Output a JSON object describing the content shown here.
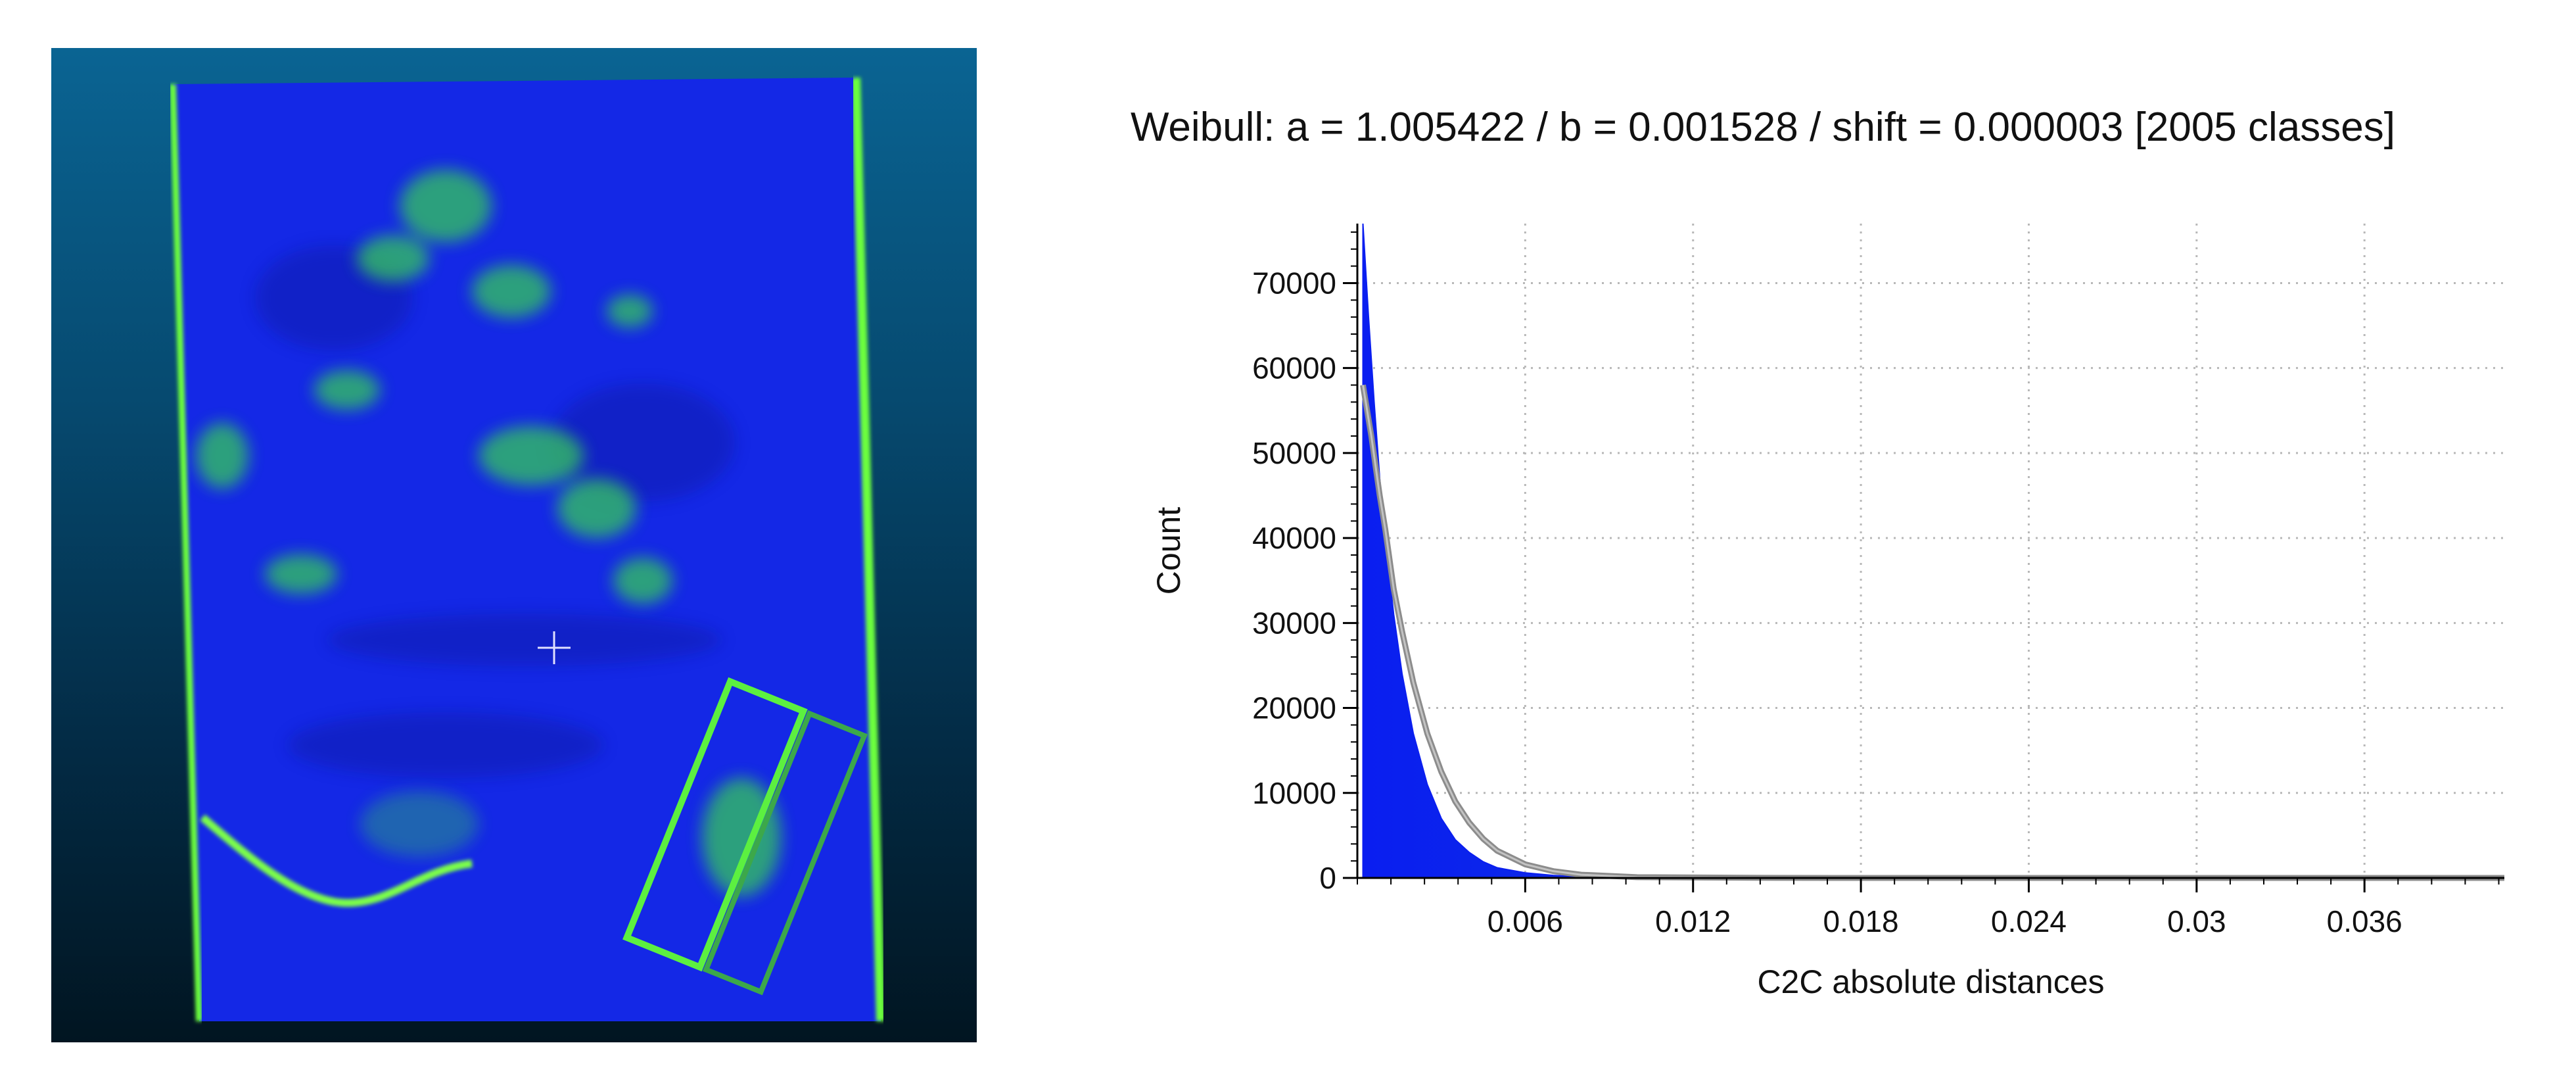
{
  "viewer": {
    "background_top": "#0a6493",
    "background_bottom": "#011521",
    "cloud_color_low": "#1428e6",
    "cloud_color_high": "#3cf040"
  },
  "histogram": {
    "title": "Weibull: a = 1.005422 / b = 0.001528 / shift = 0.000003 [2005 classes]",
    "curve_color": "#8c8c8c",
    "fill_color": "#0a1ef0"
  },
  "chart_data": {
    "type": "area",
    "title": "Weibull: a = 1.005422 / b = 0.001528 / shift = 0.000003 [2005 classes]",
    "xlabel": "C2C absolute distances",
    "ylabel": "Count",
    "xlim": [
      0,
      0.041
    ],
    "ylim": [
      0,
      77000
    ],
    "x_ticks": [
      0.006,
      0.012,
      0.018,
      0.024,
      0.03,
      0.036
    ],
    "x_tick_labels": [
      "0.006",
      "0.012",
      "0.018",
      "0.024",
      "0.03",
      "0.036"
    ],
    "y_ticks": [
      0,
      10000,
      20000,
      30000,
      40000,
      50000,
      60000,
      70000
    ],
    "y_tick_labels": [
      "0",
      "10000",
      "20000",
      "30000",
      "40000",
      "50000",
      "60000",
      "70000"
    ],
    "grid": true,
    "series": [
      {
        "kind": "histogram",
        "x": [
          0.0002,
          0.0004,
          0.0006,
          0.0008,
          0.001,
          0.0013,
          0.0016,
          0.002,
          0.0025,
          0.003,
          0.0035,
          0.004,
          0.0045,
          0.005,
          0.006,
          0.007,
          0.008,
          0.01,
          0.012,
          0.015,
          0.02,
          0.03,
          0.041
        ],
        "y": [
          77000,
          66000,
          56000,
          47000,
          40000,
          31000,
          24000,
          17000,
          11000,
          7000,
          4500,
          3000,
          1900,
          1200,
          600,
          300,
          150,
          60,
          30,
          15,
          8,
          3,
          0
        ]
      },
      {
        "kind": "weibull-fit",
        "x": [
          0.0002,
          0.0005,
          0.0008,
          0.001,
          0.0013,
          0.0016,
          0.002,
          0.0025,
          0.003,
          0.0035,
          0.004,
          0.0045,
          0.005,
          0.006,
          0.007,
          0.008,
          0.01,
          0.015,
          0.041
        ],
        "y": [
          58000,
          52000,
          45000,
          41000,
          34000,
          29000,
          23000,
          17000,
          12500,
          9000,
          6500,
          4600,
          3200,
          1600,
          800,
          380,
          90,
          5,
          0
        ]
      }
    ]
  }
}
